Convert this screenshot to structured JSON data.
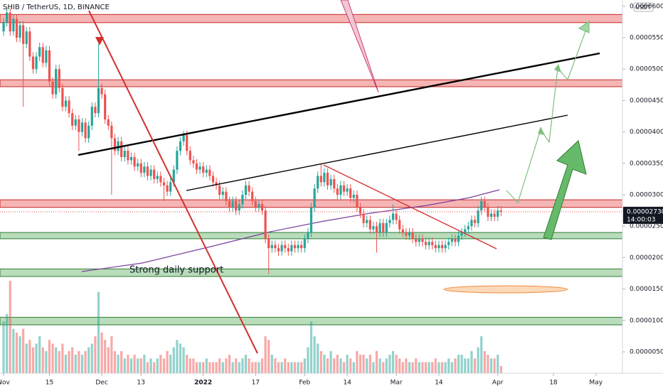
{
  "chart_data": {
    "type": "candlestick",
    "title": "SHIB / TetherUS, 1D, BINANCE",
    "currency": "USDT",
    "annotation": "Strong daily support",
    "last_price": {
      "value": 2.73e-05,
      "label": "0.00002730"
    },
    "countdown": "14:00:03",
    "up_color": "#26a69a",
    "down_color": "#ef5350",
    "xlim": [
      -1.1,
      189.1
    ],
    "xticks": [
      {
        "value": 0,
        "label": "Nov"
      },
      {
        "value": 14,
        "label": "15"
      },
      {
        "value": 30,
        "label": "Dec"
      },
      {
        "value": 42,
        "label": "13"
      },
      {
        "value": 61,
        "label": "2022"
      },
      {
        "value": 77,
        "label": "17"
      },
      {
        "value": 92,
        "label": "Feb"
      },
      {
        "value": 105,
        "label": "14"
      },
      {
        "value": 120,
        "label": "Mar"
      },
      {
        "value": 133,
        "label": "14"
      },
      {
        "value": 151,
        "label": "Apr"
      },
      {
        "value": 168,
        "label": "18"
      },
      {
        "value": 181,
        "label": "May"
      }
    ],
    "ylim": [
      1.6e-06,
      6.1e-05
    ],
    "yticks": [
      {
        "value": 5e-06,
        "label": "0.00000500"
      },
      {
        "value": 1e-05,
        "label": "0.00001000"
      },
      {
        "value": 1.5e-05,
        "label": "0.00001500"
      },
      {
        "value": 2e-05,
        "label": "0.00002000"
      },
      {
        "value": 2.5e-05,
        "label": "0.00002500"
      },
      {
        "value": 3e-05,
        "label": "0.00003000"
      },
      {
        "value": 3.5e-05,
        "label": "0.00003500"
      },
      {
        "value": 4e-05,
        "label": "0.00004000"
      },
      {
        "value": 4.5e-05,
        "label": "0.00004500"
      },
      {
        "value": 5e-05,
        "label": "0.00005000"
      },
      {
        "value": 5.5e-05,
        "label": "0.00005500"
      },
      {
        "value": 6e-05,
        "label": "0.00006000"
      }
    ],
    "zones": [
      {
        "low": 5.74e-05,
        "high": 5.87e-05,
        "color": "#f5b5b4",
        "border": "#c62828"
      },
      {
        "low": 4.72e-05,
        "high": 4.83e-05,
        "color": "#f5b5b4",
        "border": "#c62828"
      },
      {
        "low": 2.8e-05,
        "high": 2.92e-05,
        "color": "#f5b5b4",
        "border": "#c62828"
      },
      {
        "low": 2.3e-05,
        "high": 2.4e-05,
        "color": "#b9dcbb",
        "border": "#2e7d32"
      },
      {
        "low": 1.7e-05,
        "high": 1.82e-05,
        "color": "#b9dcbb",
        "border": "#2e7d32"
      },
      {
        "low": 9.3e-06,
        "high": 1.05e-05,
        "color": "#b9dcbb",
        "border": "#2e7d32"
      }
    ],
    "x": [
      0,
      1,
      2,
      3,
      4,
      5,
      6,
      7,
      8,
      9,
      10,
      11,
      12,
      13,
      14,
      15,
      16,
      17,
      18,
      19,
      20,
      21,
      22,
      23,
      24,
      25,
      26,
      27,
      28,
      29,
      30,
      31,
      32,
      33,
      34,
      35,
      36,
      37,
      38,
      39,
      40,
      41,
      42,
      43,
      44,
      45,
      46,
      47,
      48,
      49,
      50,
      51,
      52,
      53,
      54,
      55,
      56,
      57,
      58,
      59,
      60,
      61,
      62,
      63,
      64,
      65,
      66,
      67,
      68,
      69,
      70,
      71,
      72,
      73,
      74,
      75,
      76,
      77,
      78,
      79,
      80,
      81,
      82,
      83,
      84,
      85,
      86,
      87,
      88,
      89,
      90,
      91,
      92,
      93,
      94,
      95,
      96,
      97,
      98,
      99,
      100,
      101,
      102,
      103,
      104,
      105,
      106,
      107,
      108,
      109,
      110,
      111,
      112,
      113,
      114,
      115,
      116,
      117,
      118,
      119,
      120,
      121,
      122,
      123,
      124,
      125,
      126,
      127,
      128,
      129,
      130,
      131,
      132,
      133,
      134,
      135,
      136,
      137,
      138,
      139,
      140,
      141,
      142,
      143,
      144,
      145,
      146,
      147,
      148,
      149,
      150,
      151,
      152
    ],
    "open": [
      5.6e-05,
      5.75e-05,
      5.9e-05,
      5.6e-05,
      5.8e-05,
      5.5e-05,
      5.7e-05,
      5.4e-05,
      5.6e-05,
      5.2e-05,
      5e-05,
      5.2e-05,
      5.35e-05,
      5.1e-05,
      5.3e-05,
      4.8e-05,
      4.6e-05,
      5e-05,
      4.7e-05,
      4.4e-05,
      4.5e-05,
      4.3e-05,
      4.1e-05,
      4.2e-05,
      4e-05,
      4.15e-05,
      3.9e-05,
      4.1e-05,
      4.4e-05,
      4.3e-05,
      4.7e-05,
      4.6e-05,
      4.2e-05,
      4.1e-05,
      3.9e-05,
      3.7e-05,
      3.85e-05,
      3.6e-05,
      3.7e-05,
      3.55e-05,
      3.6e-05,
      3.45e-05,
      3.5e-05,
      3.35e-05,
      3.45e-05,
      3.3e-05,
      3.4e-05,
      3.25e-05,
      3.3e-05,
      3.2e-05,
      3.15e-05,
      3.05e-05,
      3.2e-05,
      3.4e-05,
      3.7e-05,
      3.85e-05,
      3.95e-05,
      3.7e-05,
      3.55e-05,
      3.5e-05,
      3.4e-05,
      3.45e-05,
      3.35e-05,
      3.4e-05,
      3.3e-05,
      3.2e-05,
      3.15e-05,
      3e-05,
      3.05e-05,
      2.9e-05,
      2.8e-05,
      2.9e-05,
      2.75e-05,
      2.85e-05,
      3e-05,
      3.15e-05,
      3.05e-05,
      2.9e-05,
      2.8e-05,
      2.85e-05,
      2.75e-05,
      2.3e-05,
      2.15e-05,
      2.2e-05,
      2.15e-05,
      2.1e-05,
      2.2e-05,
      2.15e-05,
      2.1e-05,
      2.2e-05,
      2.15e-05,
      2.2e-05,
      2.15e-05,
      2.3e-05,
      2.4e-05,
      2.8e-05,
      3.1e-05,
      3.3e-05,
      3.2e-05,
      3.35e-05,
      3.15e-05,
      3.25e-05,
      3.1e-05,
      3e-05,
      3.15e-05,
      3.05e-05,
      3.1e-05,
      2.95e-05,
      3e-05,
      2.8e-05,
      2.7e-05,
      2.55e-05,
      2.6e-05,
      2.45e-05,
      2.5e-05,
      2.4e-05,
      2.55e-05,
      2.4e-05,
      2.55e-05,
      2.6e-05,
      2.7e-05,
      2.6e-05,
      2.45e-05,
      2.4e-05,
      2.35e-05,
      2.4e-05,
      2.3e-05,
      2.25e-05,
      2.3e-05,
      2.25e-05,
      2.2e-05,
      2.25e-05,
      2.2e-05,
      2.15e-05,
      2.2e-05,
      2.15e-05,
      2.2e-05,
      2.25e-05,
      2.3e-05,
      2.25e-05,
      2.35e-05,
      2.4e-05,
      2.45e-05,
      2.5e-05,
      2.6e-05,
      2.55e-05,
      2.75e-05,
      2.9e-05,
      2.8e-05,
      2.65e-05,
      2.7e-05,
      2.65e-05,
      2.75e-05
    ],
    "high": [
      5.82e-05,
      5.97e-05,
      5.97e-05,
      5.87e-05,
      5.87e-05,
      5.77e-05,
      5.77e-05,
      5.67e-05,
      5.67e-05,
      5.27e-05,
      5.27e-05,
      5.42e-05,
      5.42e-05,
      5.37e-05,
      5.37e-05,
      4.87e-05,
      5.07e-05,
      5.07e-05,
      4.77e-05,
      4.57e-05,
      4.57e-05,
      4.37e-05,
      4.27e-05,
      4.27e-05,
      4.22e-05,
      4.22e-05,
      4.17e-05,
      4.47e-05,
      4.47e-05,
      5.4e-05,
      4.77e-05,
      4.67e-05,
      4.27e-05,
      4.17e-05,
      3.97e-05,
      3.92e-05,
      3.92e-05,
      3.77e-05,
      3.77e-05,
      3.67e-05,
      3.67e-05,
      3.57e-05,
      3.57e-05,
      3.52e-05,
      3.52e-05,
      3.47e-05,
      3.47e-05,
      3.37e-05,
      3.37e-05,
      3.27e-05,
      3.22e-05,
      3.27e-05,
      3.47e-05,
      3.77e-05,
      3.92e-05,
      4.02e-05,
      4.02e-05,
      3.77e-05,
      3.62e-05,
      3.57e-05,
      3.52e-05,
      3.52e-05,
      3.47e-05,
      3.47e-05,
      3.37e-05,
      3.27e-05,
      3.22e-05,
      3.12e-05,
      3.12e-05,
      2.97e-05,
      2.97e-05,
      2.97e-05,
      2.92e-05,
      3.07e-05,
      3.22e-05,
      3.22e-05,
      3.12e-05,
      2.97e-05,
      2.92e-05,
      2.92e-05,
      2.82e-05,
      2.37e-05,
      2.27e-05,
      2.27e-05,
      2.22e-05,
      2.27e-05,
      2.27e-05,
      2.22e-05,
      2.27e-05,
      2.27e-05,
      2.27e-05,
      2.27e-05,
      2.37e-05,
      2.47e-05,
      2.87e-05,
      3.17e-05,
      3.37e-05,
      3.5e-05,
      3.42e-05,
      3.42e-05,
      3.32e-05,
      3.32e-05,
      3.17e-05,
      3.22e-05,
      3.22e-05,
      3.17e-05,
      3.17e-05,
      3.07e-05,
      3.07e-05,
      2.87e-05,
      2.77e-05,
      2.67e-05,
      2.67e-05,
      2.57e-05,
      2.57e-05,
      2.62e-05,
      2.62e-05,
      2.62e-05,
      2.67e-05,
      2.85e-05,
      2.77e-05,
      2.67e-05,
      2.52e-05,
      2.47e-05,
      2.47e-05,
      2.47e-05,
      2.37e-05,
      2.37e-05,
      2.37e-05,
      2.32e-05,
      2.32e-05,
      2.32e-05,
      2.27e-05,
      2.27e-05,
      2.27e-05,
      2.27e-05,
      2.32e-05,
      2.37e-05,
      2.37e-05,
      2.42e-05,
      2.47e-05,
      2.52e-05,
      2.57e-05,
      2.67e-05,
      2.67e-05,
      2.82e-05,
      2.97e-05,
      2.97e-05,
      2.87e-05,
      2.77e-05,
      2.77e-05,
      2.82e-05,
      2.82e-05
    ],
    "low": [
      5.53e-05,
      5.68e-05,
      5.53e-05,
      5.53e-05,
      5.43e-05,
      5.43e-05,
      4.4e-05,
      5.33e-05,
      5.13e-05,
      4.93e-05,
      4.93e-05,
      5.13e-05,
      5.03e-05,
      5.03e-05,
      4.73e-05,
      4.53e-05,
      4.53e-05,
      4.63e-05,
      4.33e-05,
      4.33e-05,
      4.23e-05,
      4.03e-05,
      4.03e-05,
      3.7e-05,
      3.93e-05,
      3.83e-05,
      3.83e-05,
      4.03e-05,
      4.23e-05,
      4.23e-05,
      4.53e-05,
      4.13e-05,
      4.03e-05,
      3e-05,
      3.63e-05,
      3.63e-05,
      3.53e-05,
      3.53e-05,
      3.48e-05,
      3.48e-05,
      3.38e-05,
      3.38e-05,
      3.28e-05,
      3.28e-05,
      3.23e-05,
      3.23e-05,
      3.18e-05,
      3.18e-05,
      3.13e-05,
      2.9e-05,
      2.98e-05,
      2.98e-05,
      3.13e-05,
      3.33e-05,
      3.63e-05,
      3.78e-05,
      3.63e-05,
      3.48e-05,
      3.43e-05,
      3.33e-05,
      3.33e-05,
      3.28e-05,
      3.28e-05,
      3.23e-05,
      3.13e-05,
      3.08e-05,
      2.93e-05,
      2.93e-05,
      2.83e-05,
      2.73e-05,
      2.73e-05,
      2.68e-05,
      2.68e-05,
      2.78e-05,
      2.93e-05,
      2.98e-05,
      2.83e-05,
      2.73e-05,
      2.73e-05,
      2.68e-05,
      2.23e-05,
      1.74e-05,
      2.08e-05,
      2.08e-05,
      2.03e-05,
      2.03e-05,
      2.08e-05,
      2.03e-05,
      2.03e-05,
      2.08e-05,
      2.08e-05,
      2.08e-05,
      2.08e-05,
      2.23e-05,
      2.33e-05,
      2.73e-05,
      3.03e-05,
      3.13e-05,
      3.13e-05,
      3.08e-05,
      3.08e-05,
      3.03e-05,
      2.93e-05,
      2.93e-05,
      2.98e-05,
      2.98e-05,
      2.88e-05,
      2.88e-05,
      2.73e-05,
      2.63e-05,
      2.48e-05,
      2.48e-05,
      2.38e-05,
      2.38e-05,
      2.08e-05,
      2.33e-05,
      2.33e-05,
      2.33e-05,
      2.48e-05,
      2.53e-05,
      2.53e-05,
      2.38e-05,
      2.33e-05,
      2.28e-05,
      2.28e-05,
      2.23e-05,
      2.18e-05,
      2.18e-05,
      2.18e-05,
      2.13e-05,
      2.13e-05,
      2.13e-05,
      2.08e-05,
      2.08e-05,
      2.08e-05,
      2.08e-05,
      2.13e-05,
      2.18e-05,
      2.18e-05,
      2.18e-05,
      2.28e-05,
      2.33e-05,
      2.38e-05,
      2.43e-05,
      2.48e-05,
      2.48e-05,
      2.68e-05,
      2.73e-05,
      2.58e-05,
      2.58e-05,
      2.58e-05,
      2.58e-05,
      2.66e-05
    ],
    "close": [
      5.75e-05,
      5.9e-05,
      5.6e-05,
      5.8e-05,
      5.5e-05,
      5.7e-05,
      5.4e-05,
      5.6e-05,
      5.2e-05,
      5e-05,
      5.2e-05,
      5.35e-05,
      5.1e-05,
      5.3e-05,
      4.8e-05,
      4.6e-05,
      5e-05,
      4.7e-05,
      4.4e-05,
      4.5e-05,
      4.3e-05,
      4.1e-05,
      4.2e-05,
      4e-05,
      4.15e-05,
      3.9e-05,
      4.1e-05,
      4.4e-05,
      4.3e-05,
      4.7e-05,
      4.6e-05,
      4.2e-05,
      4.1e-05,
      3.9e-05,
      3.7e-05,
      3.85e-05,
      3.6e-05,
      3.7e-05,
      3.55e-05,
      3.6e-05,
      3.45e-05,
      3.5e-05,
      3.35e-05,
      3.45e-05,
      3.3e-05,
      3.4e-05,
      3.25e-05,
      3.3e-05,
      3.2e-05,
      3.15e-05,
      3.05e-05,
      3.2e-05,
      3.4e-05,
      3.7e-05,
      3.85e-05,
      3.95e-05,
      3.7e-05,
      3.55e-05,
      3.5e-05,
      3.4e-05,
      3.45e-05,
      3.35e-05,
      3.4e-05,
      3.3e-05,
      3.2e-05,
      3.15e-05,
      3e-05,
      3.05e-05,
      2.9e-05,
      2.8e-05,
      2.9e-05,
      2.75e-05,
      2.85e-05,
      3e-05,
      3.15e-05,
      3.05e-05,
      2.9e-05,
      2.8e-05,
      2.85e-05,
      2.75e-05,
      2.3e-05,
      2.15e-05,
      2.2e-05,
      2.15e-05,
      2.1e-05,
      2.2e-05,
      2.15e-05,
      2.1e-05,
      2.2e-05,
      2.15e-05,
      2.2e-05,
      2.15e-05,
      2.3e-05,
      2.4e-05,
      2.8e-05,
      3.1e-05,
      3.3e-05,
      3.2e-05,
      3.35e-05,
      3.15e-05,
      3.25e-05,
      3.1e-05,
      3e-05,
      3.15e-05,
      3.05e-05,
      3.1e-05,
      2.95e-05,
      3e-05,
      2.8e-05,
      2.7e-05,
      2.55e-05,
      2.6e-05,
      2.45e-05,
      2.5e-05,
      2.4e-05,
      2.55e-05,
      2.4e-05,
      2.55e-05,
      2.6e-05,
      2.7e-05,
      2.6e-05,
      2.45e-05,
      2.4e-05,
      2.35e-05,
      2.4e-05,
      2.3e-05,
      2.25e-05,
      2.3e-05,
      2.25e-05,
      2.2e-05,
      2.25e-05,
      2.2e-05,
      2.15e-05,
      2.2e-05,
      2.15e-05,
      2.2e-05,
      2.25e-05,
      2.3e-05,
      2.25e-05,
      2.35e-05,
      2.4e-05,
      2.45e-05,
      2.5e-05,
      2.6e-05,
      2.55e-05,
      2.75e-05,
      2.9e-05,
      2.8e-05,
      2.65e-05,
      2.7e-05,
      2.65e-05,
      2.75e-05,
      2.73e-05
    ],
    "volume": [
      70,
      80,
      125,
      60,
      55,
      50,
      60,
      40,
      45,
      35,
      40,
      50,
      35,
      30,
      45,
      40,
      35,
      30,
      40,
      25,
      30,
      35,
      25,
      30,
      25,
      30,
      35,
      40,
      50,
      110,
      55,
      45,
      35,
      50,
      30,
      25,
      30,
      20,
      25,
      20,
      25,
      20,
      20,
      25,
      15,
      20,
      15,
      20,
      25,
      20,
      30,
      25,
      35,
      45,
      40,
      35,
      25,
      20,
      20,
      15,
      15,
      15,
      20,
      15,
      15,
      15,
      20,
      15,
      20,
      25,
      15,
      20,
      15,
      20,
      25,
      20,
      15,
      15,
      15,
      20,
      50,
      45,
      25,
      20,
      15,
      15,
      20,
      15,
      15,
      15,
      15,
      15,
      20,
      35,
      70,
      50,
      40,
      30,
      25,
      20,
      30,
      20,
      25,
      20,
      15,
      25,
      20,
      15,
      30,
      25,
      25,
      20,
      25,
      15,
      30,
      20,
      15,
      20,
      25,
      30,
      25,
      20,
      15,
      20,
      15,
      15,
      20,
      15,
      15,
      15,
      15,
      15,
      20,
      15,
      15,
      15,
      20,
      15,
      20,
      25,
      25,
      20,
      20,
      30,
      20,
      35,
      50,
      30,
      25,
      20,
      20,
      25,
      10
    ]
  }
}
